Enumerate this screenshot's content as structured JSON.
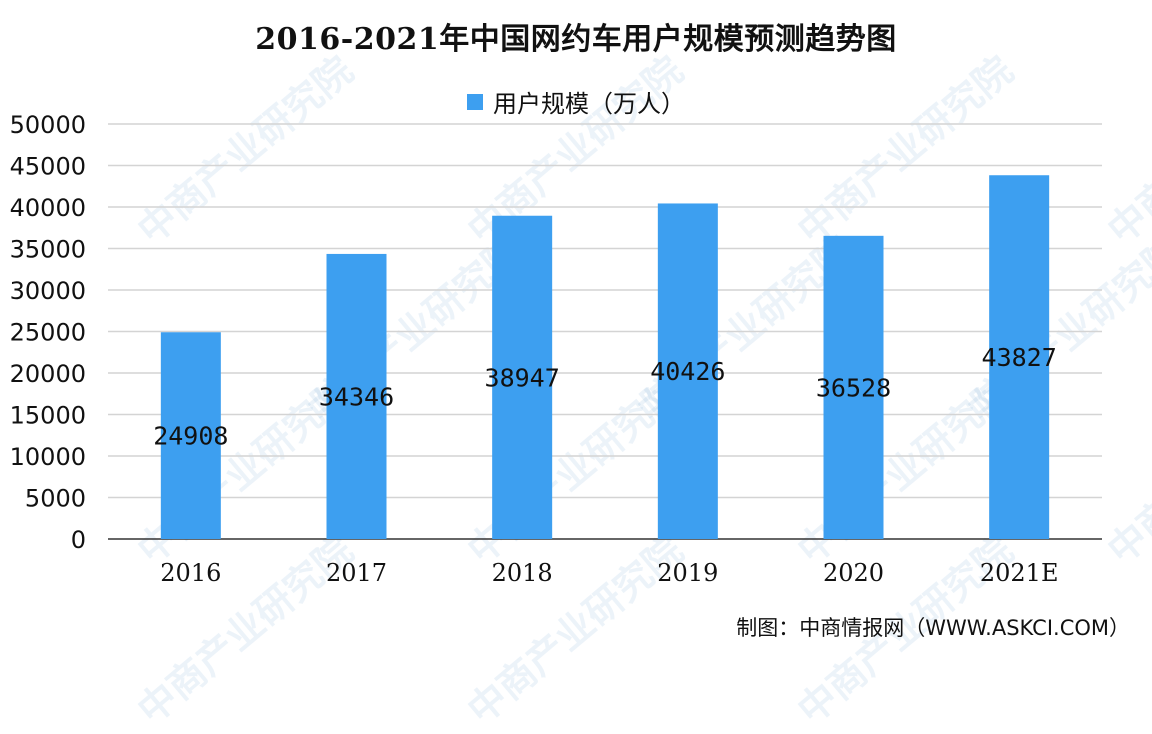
{
  "watermark_text": "中商产业研究院",
  "source": "制图：中商情报网（WWW.ASKCI.COM）",
  "colors": {
    "bar": "#3d9ff0",
    "grid": "#d4d4d4",
    "axis": "#333333"
  },
  "chart_data": {
    "type": "bar",
    "title": "2016-2021年中国网约车用户规模预测趋势图",
    "xlabel": "",
    "ylabel": "",
    "categories": [
      "2016",
      "2017",
      "2018",
      "2019",
      "2020",
      "2021E"
    ],
    "series": [
      {
        "name": "用户规模（万人）",
        "values": [
          24908,
          34346,
          38947,
          40426,
          36528,
          43827
        ]
      }
    ],
    "ylim": [
      0,
      50000
    ],
    "yticks": [
      "0",
      "5000",
      "10000",
      "15000",
      "20000",
      "25000",
      "30000",
      "35000",
      "40000",
      "45000",
      "50000"
    ],
    "data_labels": [
      "24908",
      "34346",
      "38947",
      "40426",
      "36528",
      "43827"
    ],
    "grid": true,
    "legend_position": "top"
  }
}
